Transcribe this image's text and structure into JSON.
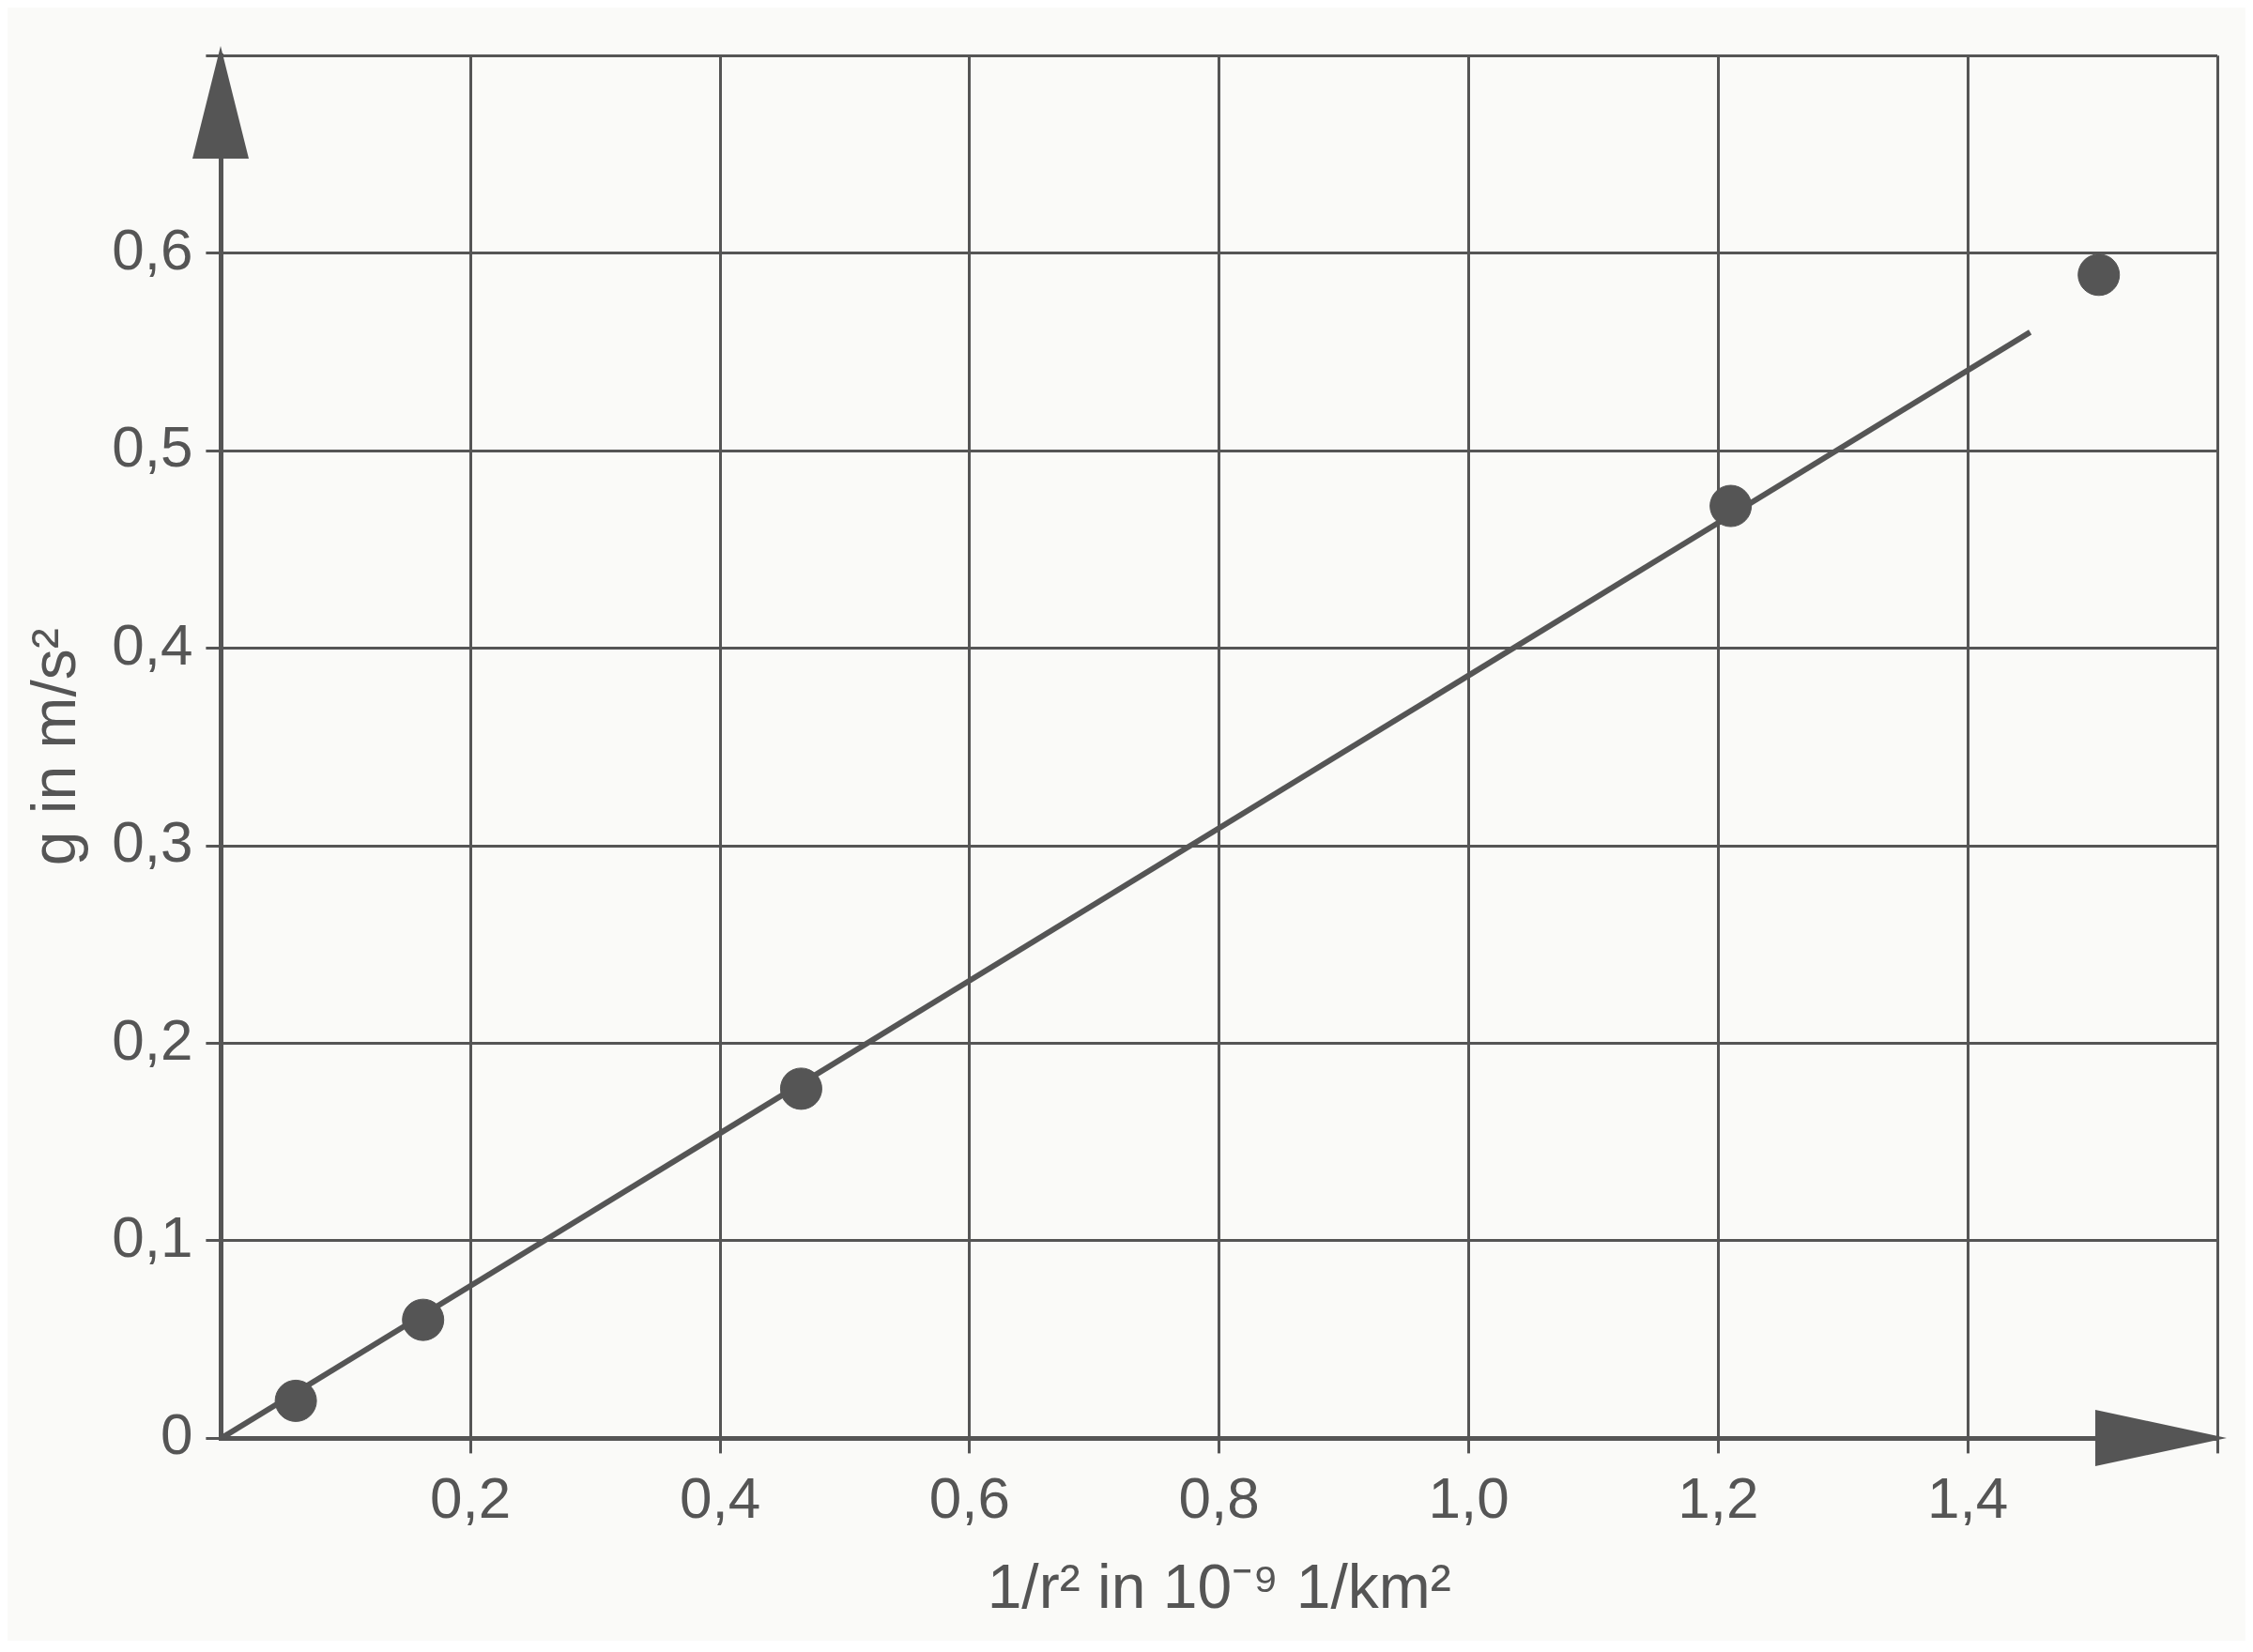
{
  "chart_data": {
    "type": "scatter",
    "xlabel": "1/r² in 10⁻⁹ 1/km²",
    "ylabel": "g in m/s²",
    "xlim": [
      0,
      1.6
    ],
    "ylim": [
      0,
      0.7
    ],
    "xticks": [
      {
        "value": 0.2,
        "label": "0,2"
      },
      {
        "value": 0.4,
        "label": "0,4"
      },
      {
        "value": 0.6,
        "label": "0,6"
      },
      {
        "value": 0.8,
        "label": "0,8"
      },
      {
        "value": 1.0,
        "label": "1,0"
      },
      {
        "value": 1.2,
        "label": "1,2"
      },
      {
        "value": 1.4,
        "label": "1,4"
      },
      {
        "value": 1.6,
        "label": null
      }
    ],
    "yticks": [
      0,
      {
        "value": 0.1,
        "label": "0,1"
      },
      {
        "value": 0.2,
        "label": "0,2"
      },
      {
        "value": 0.3,
        "label": "0,3"
      },
      {
        "value": 0.4,
        "label": "0,4"
      },
      {
        "value": 0.5,
        "label": "0,5"
      },
      {
        "value": 0.6,
        "label": "0,6"
      },
      {
        "value": 0.7,
        "label": null
      }
    ],
    "grid": true,
    "marker": "circle",
    "series": [
      {
        "type": "scatter",
        "color": "#555555",
        "x": [
          0.06,
          0.162,
          0.465,
          1.21,
          1.505
        ],
        "values": [
          0.019,
          0.06,
          0.177,
          0.472,
          0.589
        ]
      },
      {
        "type": "line",
        "color": "#555555",
        "marker": "none",
        "x": [
          0,
          1.45
        ],
        "values": [
          0,
          0.56
        ]
      }
    ]
  }
}
